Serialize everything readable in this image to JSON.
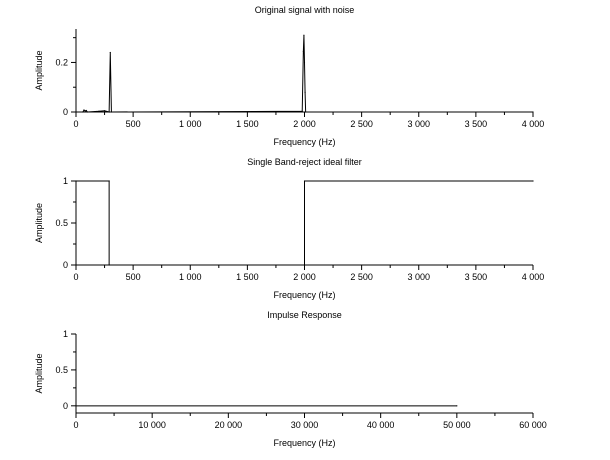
{
  "chart_data": [
    {
      "type": "line",
      "title": "Original signal with noise",
      "xlabel": "Frequency (Hz)",
      "ylabel": "Amplitude",
      "xlim": [
        0,
        4000
      ],
      "ylim": [
        0,
        0.335
      ],
      "x_ticks": [
        0,
        500,
        1000,
        1500,
        2000,
        2500,
        3000,
        3500,
        4000
      ],
      "x_tick_labels": [
        "0",
        "500",
        "1 000",
        "1 500",
        "2 000",
        "2 500",
        "3 000",
        "3 500",
        "4 000"
      ],
      "y_ticks": [
        0,
        0.2
      ],
      "y_tick_labels": [
        "0",
        "0.2"
      ],
      "grid": false,
      "series": [
        {
          "x": [
            0,
            60,
            70,
            80,
            90,
            100,
            200,
            250,
            290,
            300,
            310,
            1980,
            1990,
            1995,
            2000,
            2005,
            2010,
            4000
          ],
          "y": [
            0,
            0,
            0.008,
            0.004,
            0.006,
            0,
            0.003,
            0.005,
            0,
            0.24,
            0,
            0.003,
            0.245,
            0.31,
            0.2,
            0.08,
            0,
            0
          ]
        }
      ]
    },
    {
      "type": "line",
      "title": "Single Band-reject ideal filter",
      "xlabel": "Frequency (Hz)",
      "ylabel": "Amplitude",
      "xlim": [
        0,
        4000
      ],
      "ylim": [
        0,
        1
      ],
      "x_ticks": [
        0,
        500,
        1000,
        1500,
        2000,
        2500,
        3000,
        3500,
        4000
      ],
      "x_tick_labels": [
        "0",
        "500",
        "1 000",
        "1 500",
        "2 000",
        "2 500",
        "3 000",
        "3 500",
        "4 000"
      ],
      "y_ticks": [
        0,
        0.5,
        1
      ],
      "y_tick_labels": [
        "0",
        "0.5",
        "1"
      ],
      "grid": false,
      "series": [
        {
          "x": [
            0,
            290,
            290,
            2000,
            2000,
            4000
          ],
          "y": [
            1,
            1,
            0,
            0,
            1,
            1
          ]
        }
      ]
    },
    {
      "type": "line",
      "title": "Impulse Response",
      "xlabel": "Frequency (Hz)",
      "ylabel": "Amplitude",
      "xlim": [
        0,
        60000
      ],
      "ylim": [
        -0.1,
        1
      ],
      "x_ticks": [
        0,
        10000,
        20000,
        30000,
        40000,
        50000,
        60000
      ],
      "x_tick_labels": [
        "0",
        "10 000",
        "20 000",
        "30 000",
        "40 000",
        "50 000",
        "60 000"
      ],
      "y_ticks": [
        0,
        0.5,
        1
      ],
      "y_tick_labels": [
        "0",
        "0.5",
        "1"
      ],
      "grid": false,
      "series": [
        {
          "x": [
            0,
            50000
          ],
          "y": [
            0,
            0
          ]
        }
      ]
    }
  ]
}
